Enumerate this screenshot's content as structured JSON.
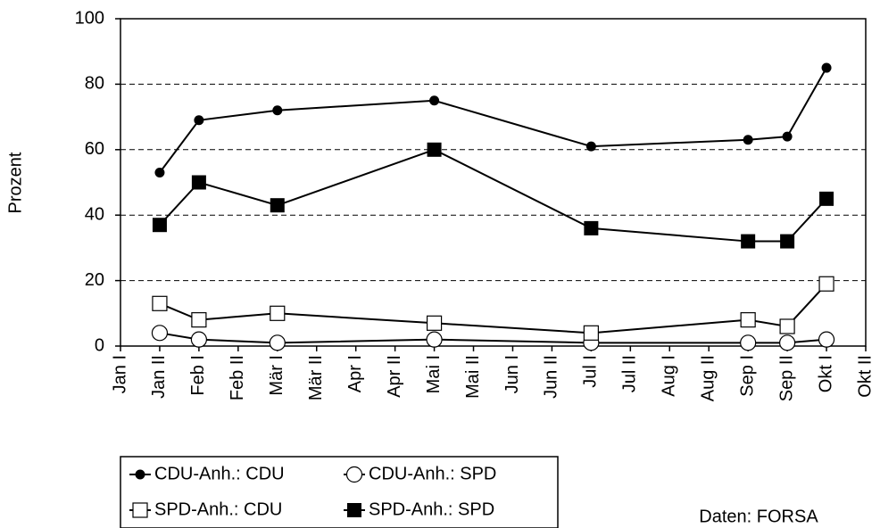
{
  "chart_data": {
    "type": "line",
    "y_label": "Prozent",
    "source": "Daten: FORSA",
    "xlim": [
      0,
      19
    ],
    "xticks": [
      {
        "value": 0,
        "label": "Jan I"
      },
      {
        "value": 1,
        "label": "Jan II"
      },
      {
        "value": 2,
        "label": "Feb I"
      },
      {
        "value": 3,
        "label": "Feb II"
      },
      {
        "value": 4,
        "label": "Mär I"
      },
      {
        "value": 5,
        "label": "Mär II"
      },
      {
        "value": 6,
        "label": "Apr I"
      },
      {
        "value": 7,
        "label": "Apr II"
      },
      {
        "value": 8,
        "label": "Mai I"
      },
      {
        "value": 9,
        "label": "Mai II"
      },
      {
        "value": 10,
        "label": "Jun I"
      },
      {
        "value": 11,
        "label": "Jun II"
      },
      {
        "value": 12,
        "label": "Jul I"
      },
      {
        "value": 13,
        "label": "Jul II"
      },
      {
        "value": 14,
        "label": "Aug I"
      },
      {
        "value": 15,
        "label": "Aug II"
      },
      {
        "value": 16,
        "label": "Sep I"
      },
      {
        "value": 17,
        "label": "Sep II"
      },
      {
        "value": 18,
        "label": "Okt I"
      },
      {
        "value": 19,
        "label": "Okt II"
      }
    ],
    "ylim": [
      0,
      100
    ],
    "yticks": [
      0,
      20,
      40,
      60,
      80,
      100
    ],
    "grid": true,
    "x": [
      1,
      2,
      4,
      8,
      12,
      16,
      17,
      18
    ],
    "series": [
      {
        "name": "CDU-Anh.: CDU",
        "color": "#000000",
        "marker": "filled-circle",
        "values": [
          53,
          69,
          72,
          75,
          61,
          63,
          64,
          85
        ]
      },
      {
        "name": "CDU-Anh.: SPD",
        "color": "#000000",
        "marker": "open-circle",
        "values": [
          4,
          2,
          1,
          2,
          1,
          1,
          1,
          2
        ]
      },
      {
        "name": "SPD-Anh.: CDU",
        "color": "#000000",
        "marker": "open-square",
        "values": [
          13,
          8,
          10,
          7,
          4,
          8,
          6,
          19
        ]
      },
      {
        "name": "SPD-Anh.: SPD",
        "color": "#000000",
        "marker": "filled-square",
        "values": [
          37,
          50,
          43,
          60,
          36,
          32,
          32,
          45
        ]
      }
    ]
  }
}
